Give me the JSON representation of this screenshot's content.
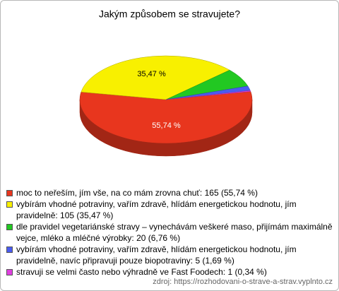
{
  "chart_data": {
    "type": "pie",
    "title": "Jakým způsobem se stravujete?",
    "categories": [
      "moc to neřeším, jím vše, na co mám zrovna chuť: 165 (55,74 %)",
      "vybírám vhodné potraviny, vařím zdravě, hlídám energetickou hodnotu, jím pravidelně: 105 (35,47 %)",
      "dle pravidel vegetariánské stravy – vynechávám veškeré maso, přijímám maximálně vejce, mléko a mléčné výrobky: 20 (6,76 %)",
      "vybírám vhodné potraviny, vařím zdravě, hlídám energetickou hodnotu, jím pravidelně, navíc připravuji pouze biopotraviny: 5 (1,69 %)",
      "stravuji se velmi často nebo výhradně ve Fast Foodech: 1 (0,34 %)"
    ],
    "values": [
      55.74,
      35.47,
      6.76,
      1.69,
      0.34
    ],
    "value_labels": [
      "55,74 %",
      "35,47 %",
      null,
      null,
      null
    ],
    "colors": [
      "#e8361e",
      "#f8f000",
      "#22c822",
      "#4a5cf0",
      "#e040e0"
    ],
    "source": "zdroj: https://rozhodovani-o-strave-a-strav.vyplnto.cz"
  }
}
